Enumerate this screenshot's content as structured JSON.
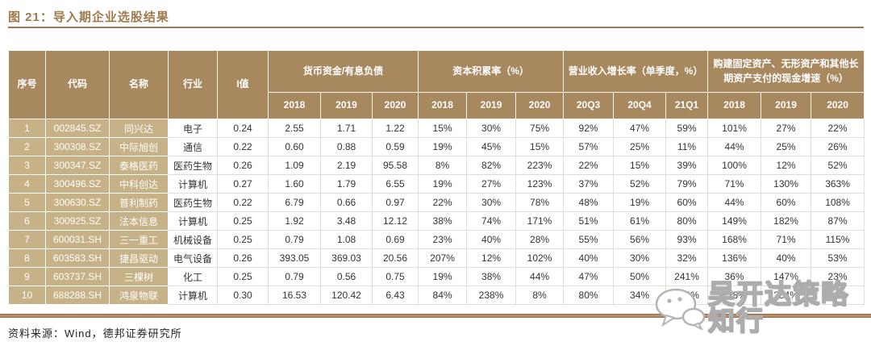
{
  "title": "图 21：导入期企业选股结果",
  "footer": {
    "source": "资料来源：Wind，德邦证券研究所"
  },
  "watermark": {
    "text": "吴开达策略知行",
    "icon": "wechat-icon"
  },
  "colors": {
    "header_bg": "#A8885E",
    "row_label_bg": "#C7B186",
    "title_text": "#9E7A4D",
    "rule": "#A5794E",
    "cell_text": "#333333"
  },
  "table": {
    "fixed": [
      "序号",
      "代码",
      "名称",
      "行业",
      "I值"
    ],
    "groups": [
      {
        "label": "货币资金/有息负债",
        "subs": [
          "2018",
          "2019",
          "2020"
        ]
      },
      {
        "label": "资本积累率（%）",
        "subs": [
          "2018",
          "2019",
          "2020"
        ]
      },
      {
        "label": "营业收入增长率（单季度，%）",
        "subs": [
          "20Q3",
          "20Q4",
          "21Q1"
        ]
      },
      {
        "label": "购建固定资产、无形资产和其他长期资产支付的现金增速（%）",
        "subs": [
          "2018",
          "2019",
          "2020"
        ]
      }
    ],
    "rows": [
      [
        "1",
        "002845.SZ",
        "同兴达",
        "电子",
        "0.24",
        "2.55",
        "1.71",
        "1.22",
        "15%",
        "30%",
        "75%",
        "92%",
        "47%",
        "59%",
        "101%",
        "27%",
        "22%"
      ],
      [
        "2",
        "300308.SZ",
        "中际旭创",
        "通信",
        "0.22",
        "0.60",
        "0.88",
        "0.59",
        "19%",
        "45%",
        "15%",
        "57%",
        "25%",
        "11%",
        "44%",
        "25%",
        "26%"
      ],
      [
        "3",
        "300347.SZ",
        "泰格医药",
        "医药生物",
        "0.26",
        "1.09",
        "2.19",
        "95.58",
        "8%",
        "82%",
        "223%",
        "22%",
        "15%",
        "39%",
        "100%",
        "12%",
        "52%"
      ],
      [
        "4",
        "300496.SZ",
        "中科创达",
        "计算机",
        "0.27",
        "1.60",
        "1.79",
        "6.55",
        "19%",
        "27%",
        "123%",
        "37%",
        "52%",
        "79%",
        "71%",
        "130%",
        "363%"
      ],
      [
        "5",
        "300630.SZ",
        "普利制药",
        "医药生物",
        "0.22",
        "6.79",
        "0.66",
        "0.97",
        "22%",
        "30%",
        "78%",
        "48%",
        "19%",
        "60%",
        "44%",
        "60%",
        "108%"
      ],
      [
        "6",
        "300925.SZ",
        "法本信息",
        "计算机",
        "0.25",
        "1.92",
        "3.48",
        "12.12",
        "38%",
        "74%",
        "171%",
        "51%",
        "61%",
        "80%",
        "149%",
        "182%",
        "87%"
      ],
      [
        "7",
        "600031.SH",
        "三一重工",
        "机械设备",
        "0.25",
        "0.79",
        "1.08",
        "0.69",
        "23%",
        "40%",
        "28%",
        "55%",
        "56%",
        "93%",
        "168%",
        "71%",
        "115%"
      ],
      [
        "8",
        "603583.SH",
        "捷昌驱动",
        "电气设备",
        "0.26",
        "393.05",
        "369.03",
        "20.56",
        "207%",
        "12%",
        "102%",
        "40%",
        "30%",
        "32%",
        "136%",
        "40%",
        "53%"
      ],
      [
        "9",
        "603737.SH",
        "三棵树",
        "化工",
        "0.25",
        "0.79",
        "0.56",
        "0.75",
        "19%",
        "38%",
        "44%",
        "47%",
        "50%",
        "241%",
        "36%",
        "147%",
        "23%"
      ],
      [
        "10",
        "688288.SH",
        "鸿泉物联",
        "计算机",
        "0.30",
        "16.53",
        "120.42",
        "6.43",
        "84%",
        "238%",
        "8%",
        "80%",
        "34%",
        "104%",
        "128%",
        "284%",
        "23%"
      ]
    ]
  }
}
